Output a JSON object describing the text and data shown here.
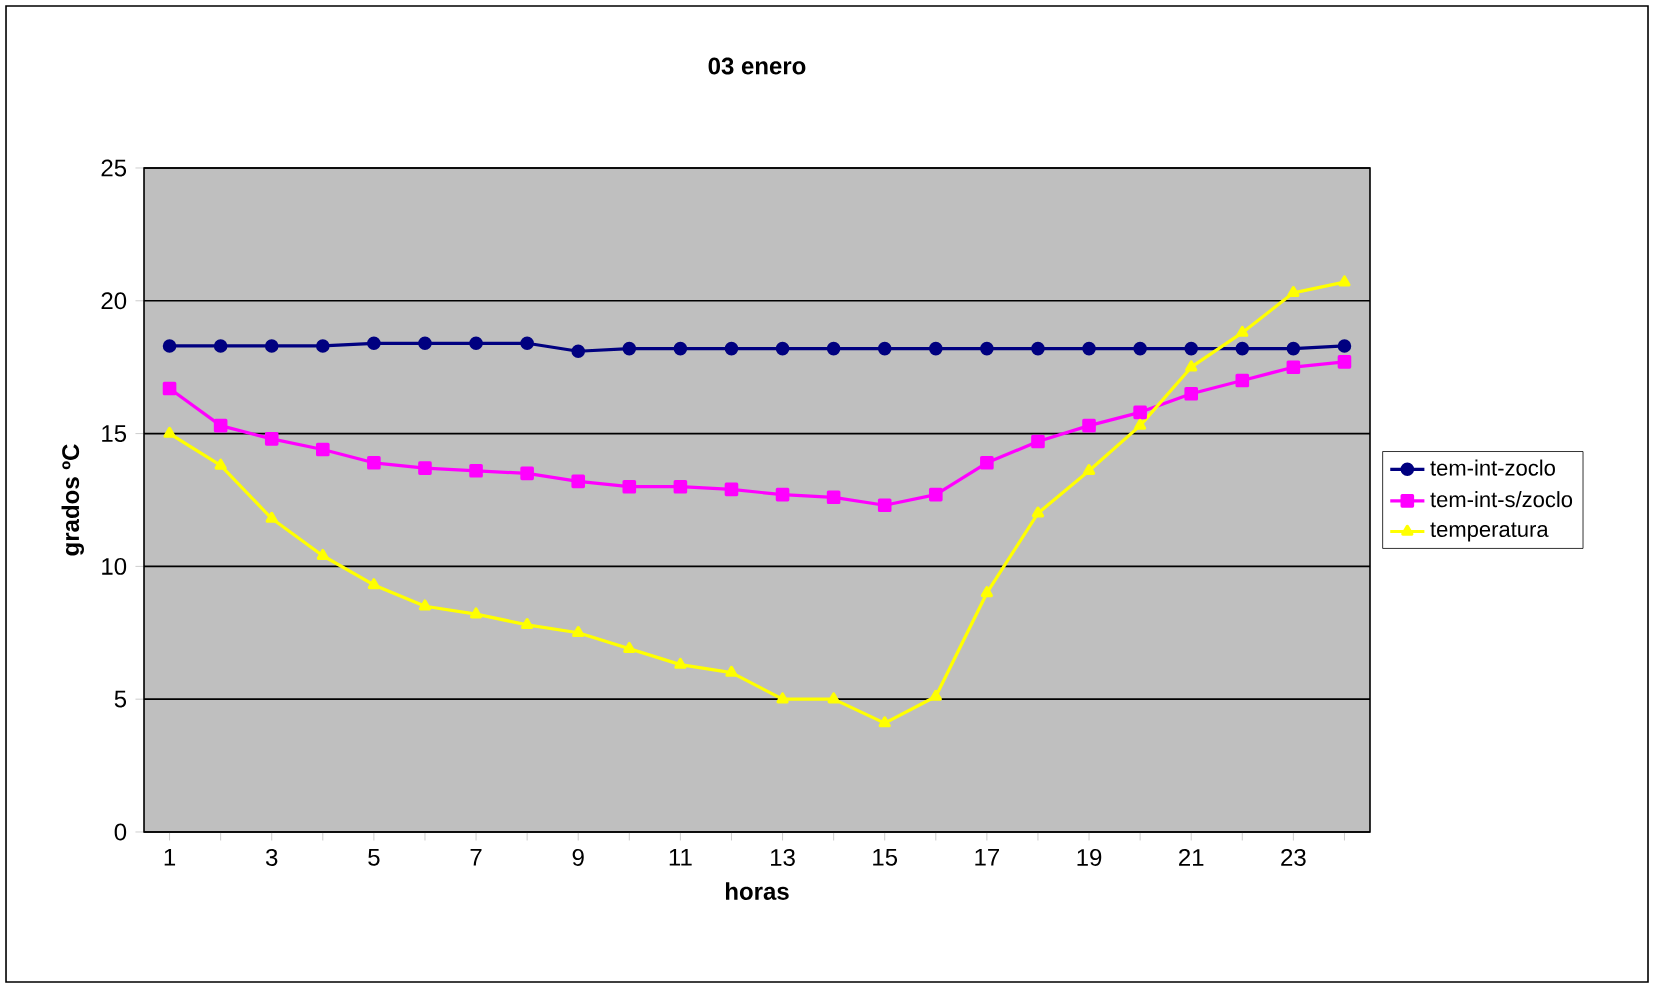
{
  "chart_data": {
    "type": "line",
    "title": "03 enero",
    "xlabel": "horas",
    "ylabel": "grados ºC",
    "categories": [
      "1",
      null,
      "3",
      null,
      "5",
      null,
      "7",
      null,
      "9",
      null,
      "11",
      null,
      "13",
      null,
      "15",
      null,
      "17",
      null,
      "19",
      null,
      "21",
      null,
      "23",
      null
    ],
    "series": [
      {
        "name": "tem-int-zoclo",
        "color": "#000080",
        "marker": "circle",
        "values": [
          18.3,
          18.3,
          18.3,
          18.3,
          18.4,
          18.4,
          18.4,
          18.4,
          18.1,
          18.2,
          18.2,
          18.2,
          18.2,
          18.2,
          18.2,
          18.2,
          18.2,
          18.2,
          18.2,
          18.2,
          18.2,
          18.2,
          18.2,
          18.3
        ]
      },
      {
        "name": "tem-int-s/zoclo",
        "color": "#ff00ff",
        "marker": "square",
        "values": [
          16.7,
          15.3,
          14.8,
          14.4,
          13.9,
          13.7,
          13.6,
          13.5,
          13.2,
          13.0,
          13.0,
          12.9,
          12.7,
          12.6,
          12.3,
          12.7,
          13.9,
          14.7,
          15.3,
          15.8,
          16.5,
          17.0,
          17.5,
          17.7
        ]
      },
      {
        "name": "temperatura",
        "color": "#ffff00",
        "marker": "triangle",
        "values": [
          15.0,
          13.8,
          11.8,
          10.4,
          9.3,
          8.5,
          8.2,
          7.8,
          7.5,
          6.9,
          6.3,
          6.0,
          5.0,
          5.0,
          4.1,
          5.1,
          9.0,
          12.0,
          13.6,
          15.3,
          17.5,
          18.8,
          20.3,
          20.7
        ]
      }
    ],
    "ylim": [
      0,
      25
    ],
    "yticks": [
      0,
      5,
      10,
      15,
      20,
      25
    ],
    "grid": "y",
    "legend": "right"
  }
}
